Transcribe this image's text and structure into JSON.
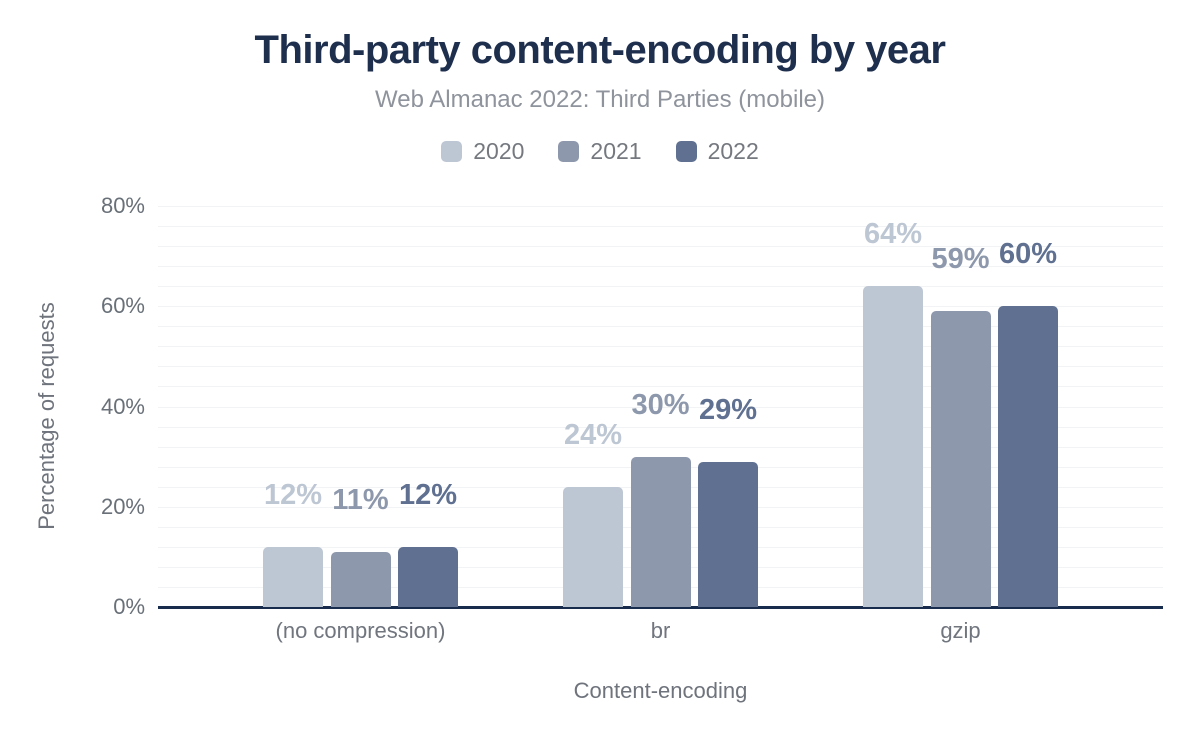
{
  "header": {
    "title": "Third-party content-encoding by year",
    "subtitle": "Web Almanac 2022: Third Parties (mobile)"
  },
  "legend": {
    "items": [
      {
        "label": "2020",
        "color": "#bdc6d3"
      },
      {
        "label": "2021",
        "color": "#8d98ac"
      },
      {
        "label": "2022",
        "color": "#5f7090"
      }
    ]
  },
  "chart_data": {
    "type": "bar",
    "title": "Third-party content-encoding by year",
    "subtitle": "Web Almanac 2022: Third Parties (mobile)",
    "categories": [
      "(no compression)",
      "br",
      "gzip"
    ],
    "series": [
      {
        "name": "2020",
        "color": "#bdc6d3",
        "values": [
          12,
          24,
          64
        ],
        "labels": [
          "12%",
          "24%",
          "64%"
        ]
      },
      {
        "name": "2021",
        "color": "#8d98ac",
        "values": [
          11,
          30,
          59
        ],
        "labels": [
          "11%",
          "30%",
          "59%"
        ]
      },
      {
        "name": "2022",
        "color": "#5f7090",
        "values": [
          12,
          29,
          60
        ],
        "labels": [
          "12%",
          "29%",
          "60%"
        ]
      }
    ],
    "xlabel": "Content-encoding",
    "ylabel": "Percentage of requests",
    "ylim": [
      0,
      80
    ],
    "yticks": [
      0,
      20,
      40,
      60,
      80
    ],
    "ytick_labels": [
      "0%",
      "20%",
      "40%",
      "60%",
      "80%"
    ],
    "grid": {
      "horizontal": true,
      "step_pct": 4,
      "color": "#f2f3f5"
    },
    "legend_position": "top",
    "axis_line_color": "#182c4d"
  }
}
